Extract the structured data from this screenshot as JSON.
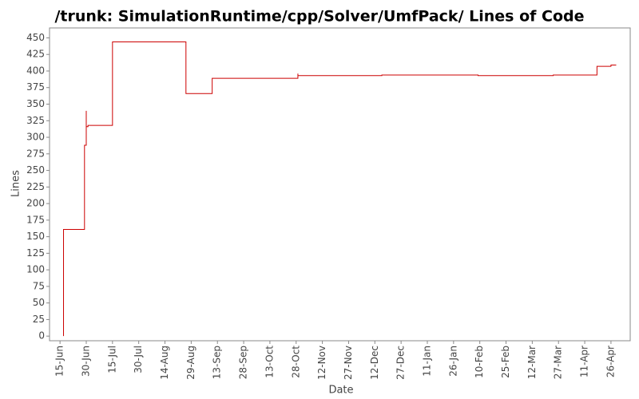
{
  "chart_data": {
    "type": "step-line",
    "title": "/trunk: SimulationRuntime/cpp/Solver/UmfPack/ Lines of Code",
    "x_label": "Date",
    "y_label": "Lines",
    "x": [
      "17-Jun",
      "17-Jun",
      "29-Jun",
      "30-Jun",
      "30-Jun",
      "1-Jul",
      "15-Jul",
      "26-Aug",
      "10-Sep",
      "29-Oct",
      "29-Oct",
      "16-Dec",
      "9-Feb",
      "24-Mar",
      "18-Apr",
      "26-Apr",
      "29-Apr"
    ],
    "series": [
      {
        "name": "Lines",
        "color": "#cc0000",
        "values": [
          0,
          161,
          288,
          340,
          316,
          318,
          444,
          366,
          389,
          396,
          393,
          394,
          393,
          394,
          407,
          409,
          409
        ]
      }
    ],
    "xlim": [
      "9-Jun",
      "7-May"
    ],
    "xticks": [
      "15-Jun",
      "30-Jun",
      "15-Jul",
      "30-Jul",
      "14-Aug",
      "29-Aug",
      "13-Sep",
      "28-Sep",
      "13-Oct",
      "28-Oct",
      "12-Nov",
      "27-Nov",
      "12-Dec",
      "27-Dec",
      "11-Jan",
      "26-Jan",
      "10-Feb",
      "25-Feb",
      "12-Mar",
      "27-Mar",
      "11-Apr",
      "26-Apr"
    ],
    "ylim": [
      -7,
      465
    ],
    "yticks": [
      0,
      25,
      50,
      75,
      100,
      125,
      150,
      175,
      200,
      225,
      250,
      275,
      300,
      325,
      350,
      375,
      400,
      425,
      450
    ],
    "grid": false
  }
}
